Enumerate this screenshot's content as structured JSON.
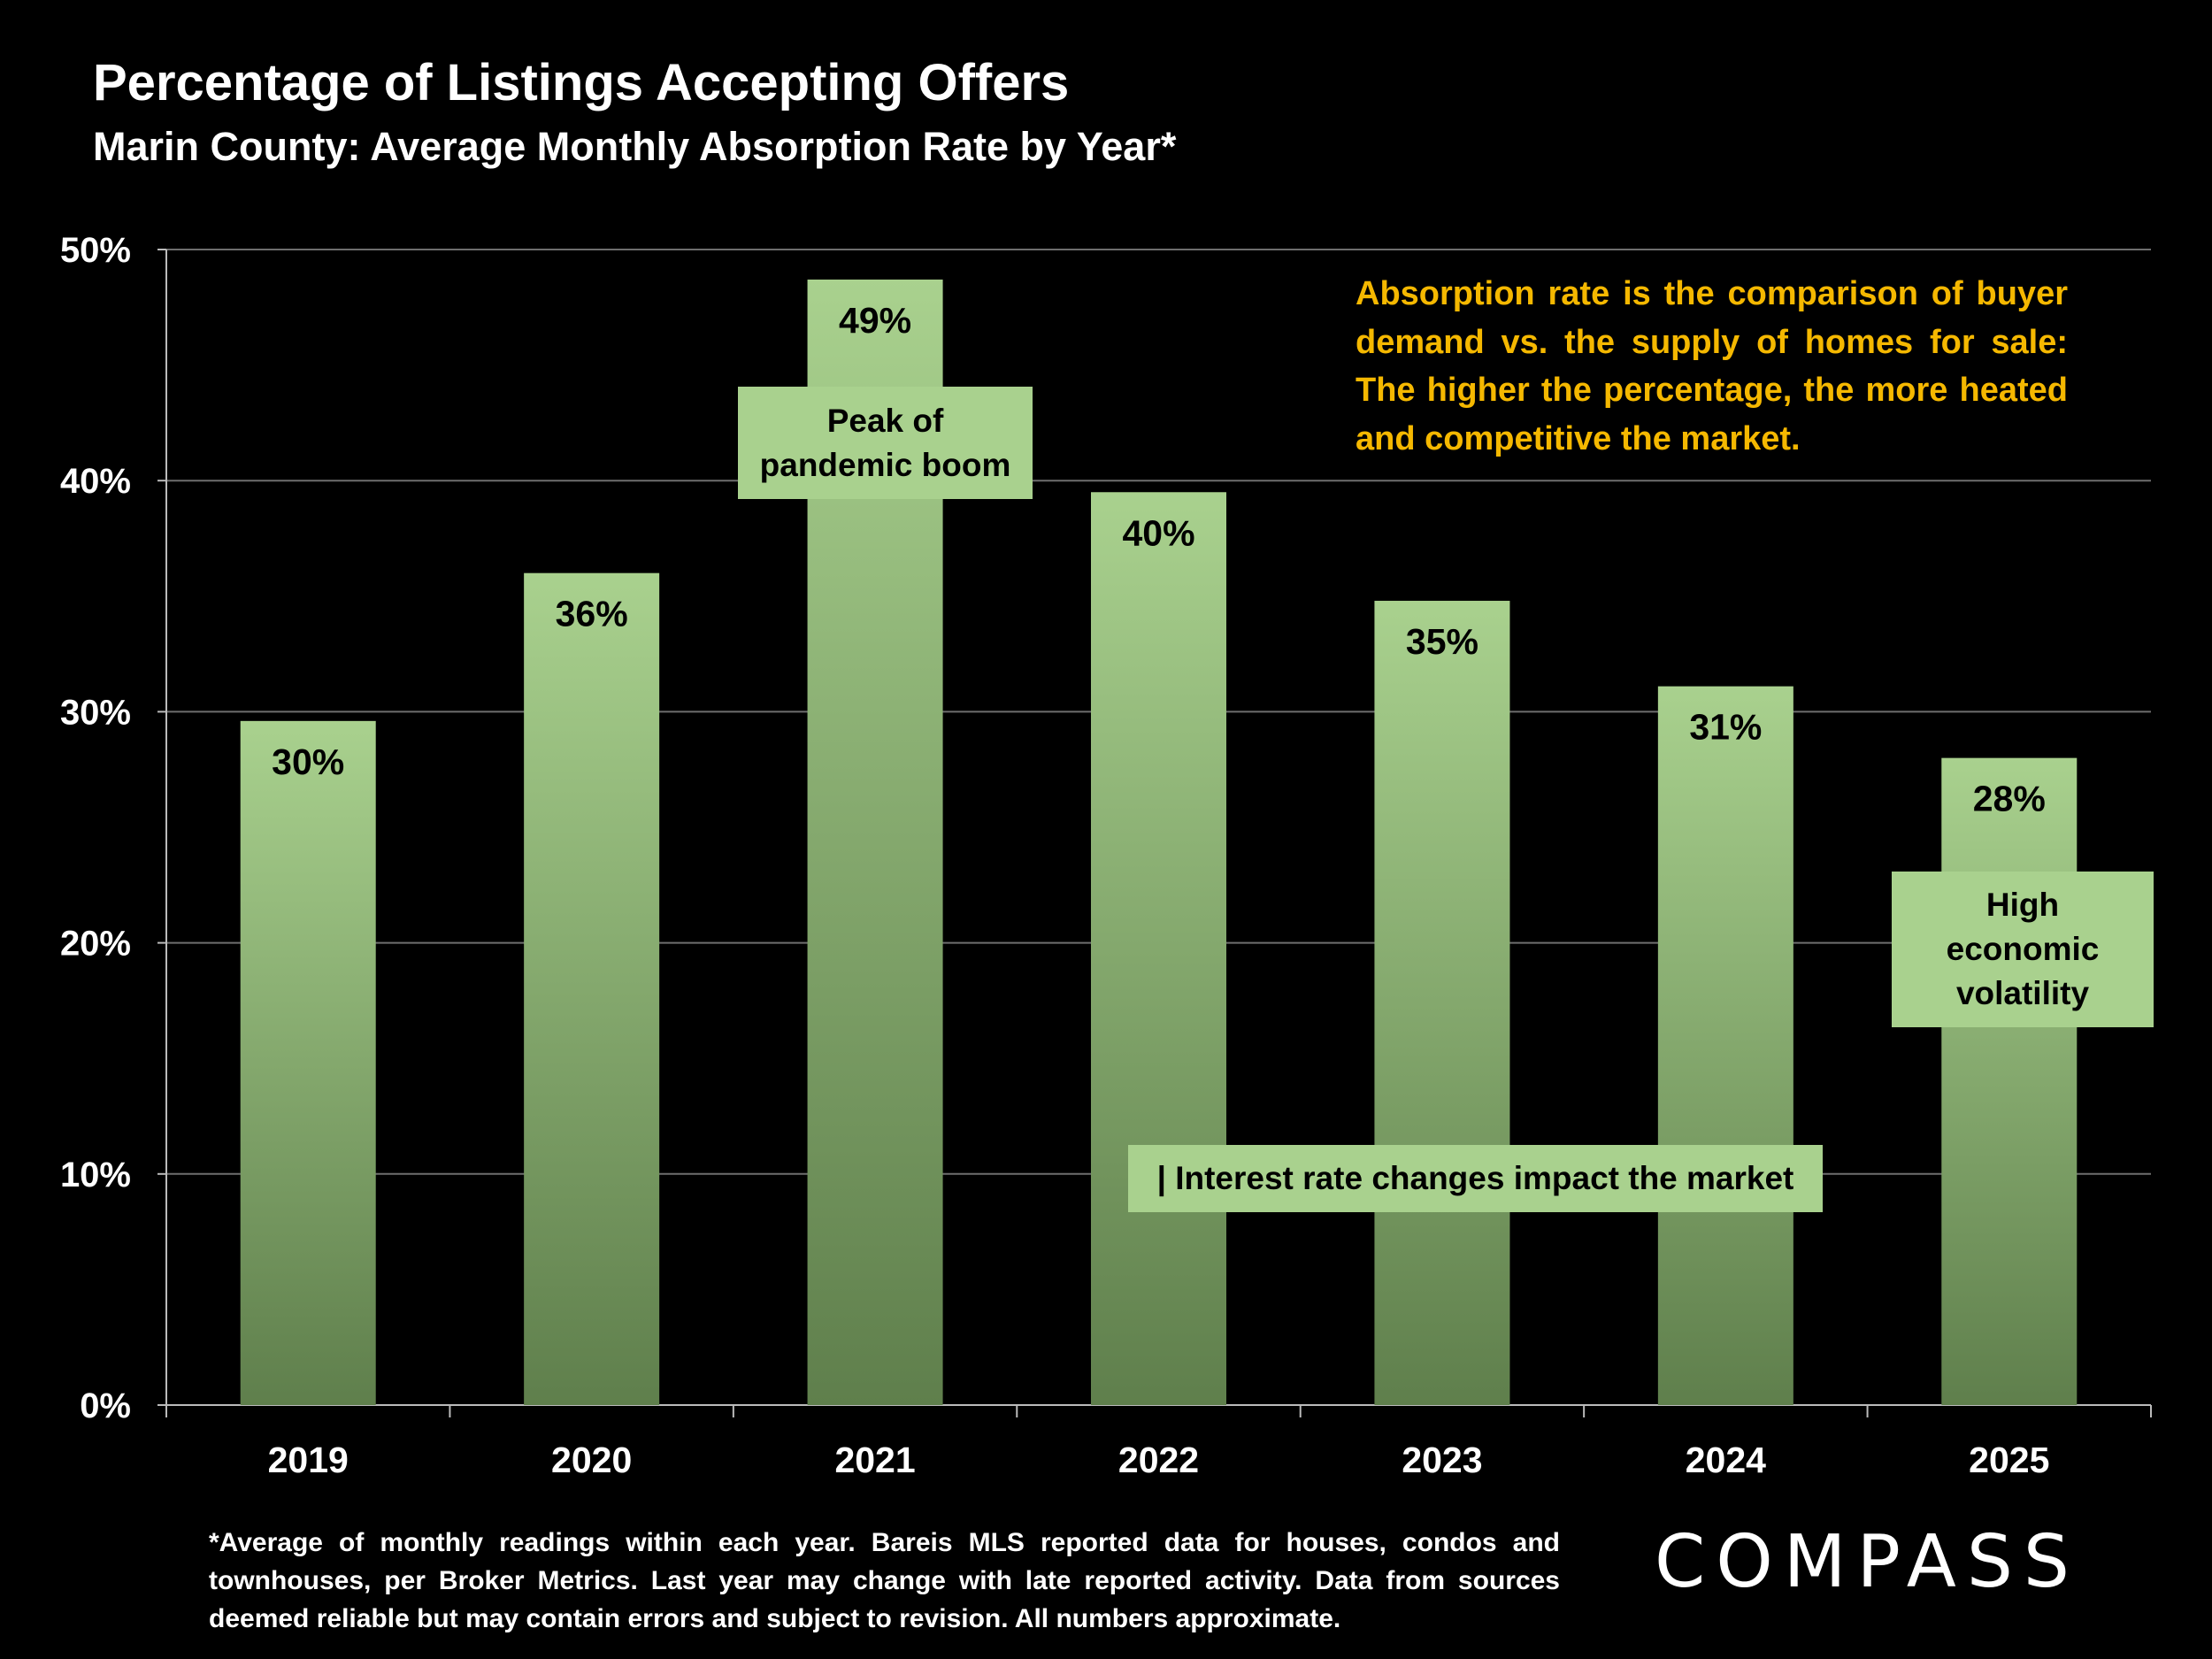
{
  "title": "Percentage of Listings Accepting Offers",
  "subtitle": "Marin County: Average Monthly Absorption Rate by Year*",
  "annotation_note": "Absorption rate is the comparison of buyer demand vs. the supply of homes for sale: The higher the percentage, the more heated and competitive the market.",
  "callouts": {
    "peak": "Peak of pandemic boom",
    "volatility": "High economic volatility",
    "interest": "| Interest rate changes impact the market"
  },
  "footnote": "*Average of monthly readings within each year. Bareis MLS reported data for houses, condos and townhouses, per Broker Metrics.  Last year may change with late reported activity. Data from sources deemed reliable but may contain errors and subject to revision. All numbers approximate.",
  "logo": "COMPASS",
  "colors": {
    "background": "#000000",
    "bar_top": "#a9d18e",
    "bar_bottom": "#5f7f4c",
    "note_text": "#f5b800",
    "callout_bg": "#a9d18e"
  },
  "chart_data": {
    "type": "bar",
    "categories": [
      "2019",
      "2020",
      "2021",
      "2022",
      "2023",
      "2024",
      "2025"
    ],
    "values": [
      29.6,
      36.0,
      48.7,
      39.5,
      34.8,
      31.1,
      28.0
    ],
    "data_labels": [
      "30%",
      "36%",
      "49%",
      "40%",
      "35%",
      "31%",
      "28%"
    ],
    "yticks": [
      "0%",
      "10%",
      "20%",
      "30%",
      "40%",
      "50%"
    ],
    "ylim": [
      0,
      50
    ],
    "grid": true,
    "legend": "none"
  }
}
